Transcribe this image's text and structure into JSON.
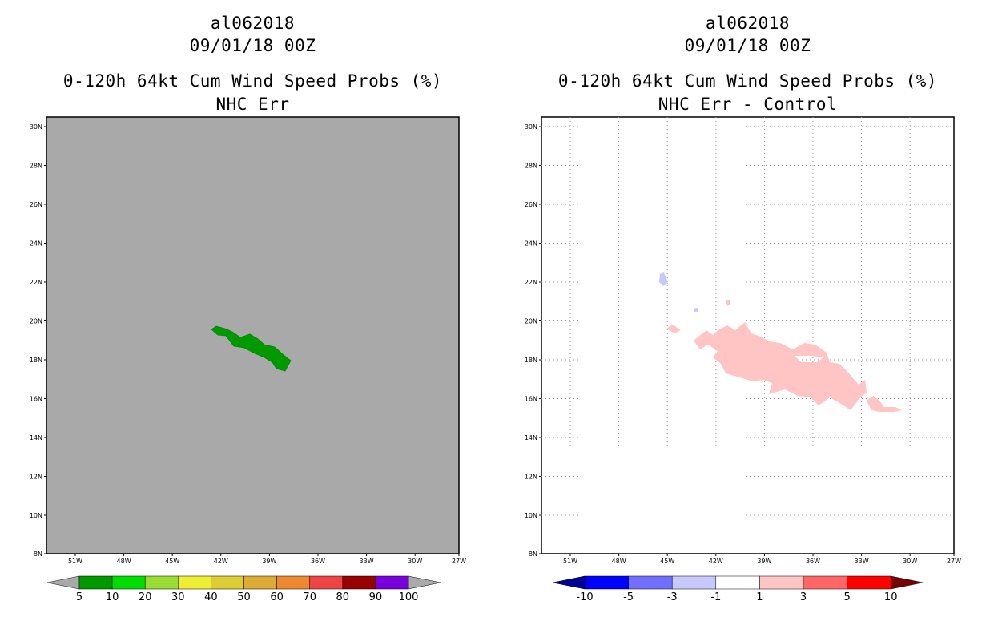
{
  "left_panel": {
    "header": {
      "storm": "al062018",
      "time": "09/01/18 00Z",
      "product": "0-120h 64kt Cum Wind Speed Probs (%)",
      "subtitle": "NHC Err"
    },
    "map": {
      "lat_labels": [
        "30N",
        "28N",
        "26N",
        "24N",
        "22N",
        "20N",
        "18N",
        "16N",
        "14N",
        "12N",
        "10N",
        "8N"
      ],
      "lon_labels": [
        "51W",
        "48W",
        "45W",
        "42W",
        "39W",
        "36W",
        "33W",
        "30W",
        "27W"
      ],
      "background_color": "#a9a9a9",
      "feature": {
        "label": "5-10% probability swath",
        "color": "#009900"
      }
    },
    "colorbar": {
      "labels": [
        "5",
        "10",
        "20",
        "30",
        "40",
        "50",
        "60",
        "70",
        "80",
        "90",
        "100"
      ],
      "colors": [
        "#009900",
        "#00dd00",
        "#99dd33",
        "#eeee33",
        "#ddcc33",
        "#ddaa33",
        "#ee8833",
        "#ee4444",
        "#990000",
        "#7700dd"
      ],
      "end_color": "#a9a9a9"
    }
  },
  "right_panel": {
    "header": {
      "storm": "al062018",
      "time": "09/01/18 00Z",
      "product": "0-120h 64kt Cum Wind Speed Probs (%)",
      "subtitle": "NHC Err - Control"
    },
    "map": {
      "lat_labels": [
        "30N",
        "28N",
        "26N",
        "24N",
        "22N",
        "20N",
        "18N",
        "16N",
        "14N",
        "12N",
        "10N",
        "8N"
      ],
      "lon_labels": [
        "51W",
        "48W",
        "45W",
        "42W",
        "39W",
        "36W",
        "33W",
        "30W",
        "27W"
      ],
      "background_color": "#ffffff",
      "positive_color": "#ffc4c4",
      "negative_color": "#c8c8ff"
    },
    "colorbar": {
      "labels": [
        "-10",
        "-5",
        "-3",
        "-1",
        "1",
        "3",
        "5",
        "10"
      ],
      "colors": [
        "#0000ff",
        "#7070ff",
        "#c8c8ff",
        "#ffffff",
        "#ffc4c4",
        "#ff6666",
        "#ff0000"
      ],
      "left_end_color": "#000099",
      "right_end_color": "#770000"
    }
  }
}
